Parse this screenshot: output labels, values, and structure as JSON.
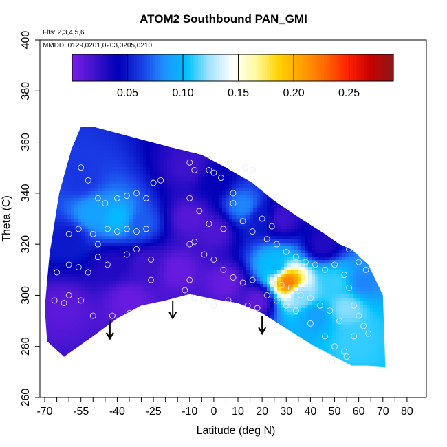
{
  "chart_data": {
    "type": "heatmap",
    "title": "ATOM2 Southbound PAN_GMI",
    "subtitle_flights": "Flts: 2,3,4,5,6",
    "subtitle_dates": "MMDD: 0129,0201,0203,0205,0210",
    "xlabel": "Latitude (deg N)",
    "ylabel": "Theta (C)",
    "xlim": [
      -70,
      80
    ],
    "ylim": [
      260,
      400
    ],
    "x_ticks": [
      -70,
      -55,
      -40,
      -25,
      -10,
      0,
      10,
      20,
      30,
      40,
      50,
      60,
      70,
      80
    ],
    "x_minor_ticks": [
      -65,
      -60,
      -50,
      -45,
      -35,
      -30,
      -20,
      -15,
      -5,
      5,
      15,
      25,
      35,
      45,
      55,
      65,
      75
    ],
    "y_ticks": [
      260,
      280,
      300,
      320,
      340,
      360,
      380,
      400
    ],
    "colorbar": {
      "range": [
        0.0,
        0.29
      ],
      "ticks": [
        0.05,
        0.1,
        0.15,
        0.2,
        0.25
      ],
      "tick_labels": [
        "0.05",
        "0.10",
        "0.15",
        "0.20",
        "0.25"
      ],
      "colors": [
        "#7a1fe6",
        "#3c12cc",
        "#0000b8",
        "#1a3ce6",
        "#1e90ff",
        "#00c2ff",
        "#a8e4ff",
        "#ffffff",
        "#fffaa0",
        "#ffd200",
        "#ffa000",
        "#ff6a00",
        "#ff2200",
        "#c80000",
        "#8a1a1a"
      ]
    },
    "domain_boundary": [
      [
        -62,
        276
      ],
      [
        -50,
        284
      ],
      [
        -40,
        291
      ],
      [
        -30,
        296
      ],
      [
        -20,
        298
      ],
      [
        -10,
        300.5
      ],
      [
        0,
        298.5
      ],
      [
        10,
        297
      ],
      [
        20,
        293
      ],
      [
        30,
        287
      ],
      [
        40,
        281
      ],
      [
        50,
        276
      ],
      [
        57,
        272.5
      ],
      [
        64,
        272.5
      ],
      [
        71,
        272
      ],
      [
        70,
        300
      ],
      [
        64,
        312
      ],
      [
        57,
        318
      ],
      [
        52,
        320
      ],
      [
        46,
        324
      ],
      [
        36,
        330
      ],
      [
        25,
        337
      ],
      [
        16,
        344
      ],
      [
        5,
        350
      ],
      [
        -5,
        355
      ],
      [
        -18,
        358
      ],
      [
        -30,
        361
      ],
      [
        -42,
        364
      ],
      [
        -50,
        366
      ],
      [
        -55,
        366
      ],
      [
        -59,
        357
      ],
      [
        -64,
        340
      ],
      [
        -68,
        316
      ],
      [
        -70,
        295
      ],
      [
        -69,
        282
      ]
    ],
    "value_field_points": [
      {
        "lat": -55,
        "theta": 345,
        "value": 0.06
      },
      {
        "lat": -50,
        "theta": 332,
        "value": 0.09
      },
      {
        "lat": -40,
        "theta": 330,
        "value": 0.1
      },
      {
        "lat": -30,
        "theta": 328,
        "value": 0.07
      },
      {
        "lat": -60,
        "theta": 322,
        "value": 0.05
      },
      {
        "lat": -42,
        "theta": 312,
        "value": 0.03
      },
      {
        "lat": -28,
        "theta": 312,
        "value": 0.02
      },
      {
        "lat": -62,
        "theta": 295,
        "value": 0.01
      },
      {
        "lat": -35,
        "theta": 298,
        "value": 0.006
      },
      {
        "lat": -15,
        "theta": 310,
        "value": 0.006
      },
      {
        "lat": -10,
        "theta": 330,
        "value": 0.012
      },
      {
        "lat": -10,
        "theta": 350,
        "value": 0.02
      },
      {
        "lat": 0,
        "theta": 345,
        "value": 0.04
      },
      {
        "lat": 0,
        "theta": 325,
        "value": 0.015
      },
      {
        "lat": 12,
        "theta": 335,
        "value": 0.08
      },
      {
        "lat": 20,
        "theta": 330,
        "value": 0.05
      },
      {
        "lat": 5,
        "theta": 305,
        "value": 0.006
      },
      {
        "lat": 25,
        "theta": 312,
        "value": 0.1
      },
      {
        "lat": 31,
        "theta": 305,
        "value": 0.22
      },
      {
        "lat": 36,
        "theta": 300,
        "value": 0.12
      },
      {
        "lat": 42,
        "theta": 292,
        "value": 0.09
      },
      {
        "lat": 50,
        "theta": 305,
        "value": 0.11
      },
      {
        "lat": 55,
        "theta": 295,
        "value": 0.12
      },
      {
        "lat": 58,
        "theta": 282,
        "value": 0.11
      },
      {
        "lat": 62,
        "theta": 305,
        "value": 0.08
      },
      {
        "lat": 45,
        "theta": 320,
        "value": 0.03
      },
      {
        "lat": 28,
        "theta": 330,
        "value": 0.02
      },
      {
        "lat": 18,
        "theta": 298,
        "value": 0.01
      }
    ],
    "sample_locations": [
      [
        -55,
        350
      ],
      [
        -52,
        345
      ],
      [
        -48,
        338
      ],
      [
        -45,
        336
      ],
      [
        -40,
        338
      ],
      [
        -36,
        339
      ],
      [
        -32,
        340
      ],
      [
        -28,
        338
      ],
      [
        -25,
        344
      ],
      [
        -22,
        345
      ],
      [
        -60,
        324
      ],
      [
        -56,
        326
      ],
      [
        -50,
        324
      ],
      [
        -48,
        320
      ],
      [
        -44,
        326
      ],
      [
        -40,
        325
      ],
      [
        -36,
        326
      ],
      [
        -32,
        325
      ],
      [
        -28,
        326
      ],
      [
        -65,
        309
      ],
      [
        -60,
        312
      ],
      [
        -56,
        311
      ],
      [
        -52,
        309
      ],
      [
        -48,
        315
      ],
      [
        -44,
        312
      ],
      [
        -36,
        316
      ],
      [
        -32,
        318
      ],
      [
        -26,
        314
      ],
      [
        -66,
        298
      ],
      [
        -62,
        297
      ],
      [
        -60,
        300
      ],
      [
        -55,
        298
      ],
      [
        -50,
        292
      ],
      [
        -42,
        292
      ],
      [
        -35,
        293
      ],
      [
        -26,
        306
      ],
      [
        -10,
        352
      ],
      [
        -8,
        349
      ],
      [
        -2,
        349
      ],
      [
        0,
        348
      ],
      [
        3,
        346
      ],
      [
        8,
        340
      ],
      [
        13,
        350
      ],
      [
        16,
        349
      ],
      [
        -10,
        338
      ],
      [
        -6,
        333
      ],
      [
        -2,
        328
      ],
      [
        4,
        326
      ],
      [
        8,
        336
      ],
      [
        12,
        329
      ],
      [
        16,
        325
      ],
      [
        20,
        330
      ],
      [
        24,
        327
      ],
      [
        -10,
        320
      ],
      [
        -8,
        321
      ],
      [
        -4,
        316
      ],
      [
        0,
        314
      ],
      [
        4,
        310
      ],
      [
        8,
        307
      ],
      [
        12,
        305
      ],
      [
        16,
        306
      ],
      [
        -10,
        306
      ],
      [
        -12,
        302
      ],
      [
        -8,
        299
      ],
      [
        -4,
        298
      ],
      [
        0,
        296
      ],
      [
        6,
        298
      ],
      [
        14,
        296
      ],
      [
        18,
        295
      ],
      [
        22,
        322
      ],
      [
        26,
        320
      ],
      [
        30,
        317
      ],
      [
        34,
        315
      ],
      [
        38,
        313
      ],
      [
        42,
        312
      ],
      [
        46,
        310
      ],
      [
        50,
        312
      ],
      [
        24,
        305
      ],
      [
        28,
        304
      ],
      [
        32,
        303
      ],
      [
        36,
        300
      ],
      [
        40,
        299
      ],
      [
        44,
        296
      ],
      [
        48,
        294
      ],
      [
        52,
        290
      ],
      [
        22,
        300
      ],
      [
        26,
        298
      ],
      [
        30,
        296
      ],
      [
        34,
        294
      ],
      [
        40,
        289
      ],
      [
        46,
        284
      ],
      [
        50,
        280
      ],
      [
        54,
        278
      ],
      [
        54,
        308
      ],
      [
        56,
        303
      ],
      [
        58,
        296
      ],
      [
        60,
        292
      ],
      [
        62,
        288
      ],
      [
        64,
        285
      ],
      [
        56,
        318
      ],
      [
        60,
        313
      ],
      [
        63,
        310
      ],
      [
        58,
        284
      ],
      [
        55,
        276
      ],
      [
        49,
        274
      ]
    ],
    "annotations": [
      {
        "type": "arrow",
        "lat": -43,
        "theta": 288,
        "direction": "down"
      },
      {
        "type": "arrow",
        "lat": -17,
        "theta": 296,
        "direction": "down"
      },
      {
        "type": "arrow",
        "lat": 20,
        "theta": 290,
        "direction": "down"
      }
    ]
  }
}
